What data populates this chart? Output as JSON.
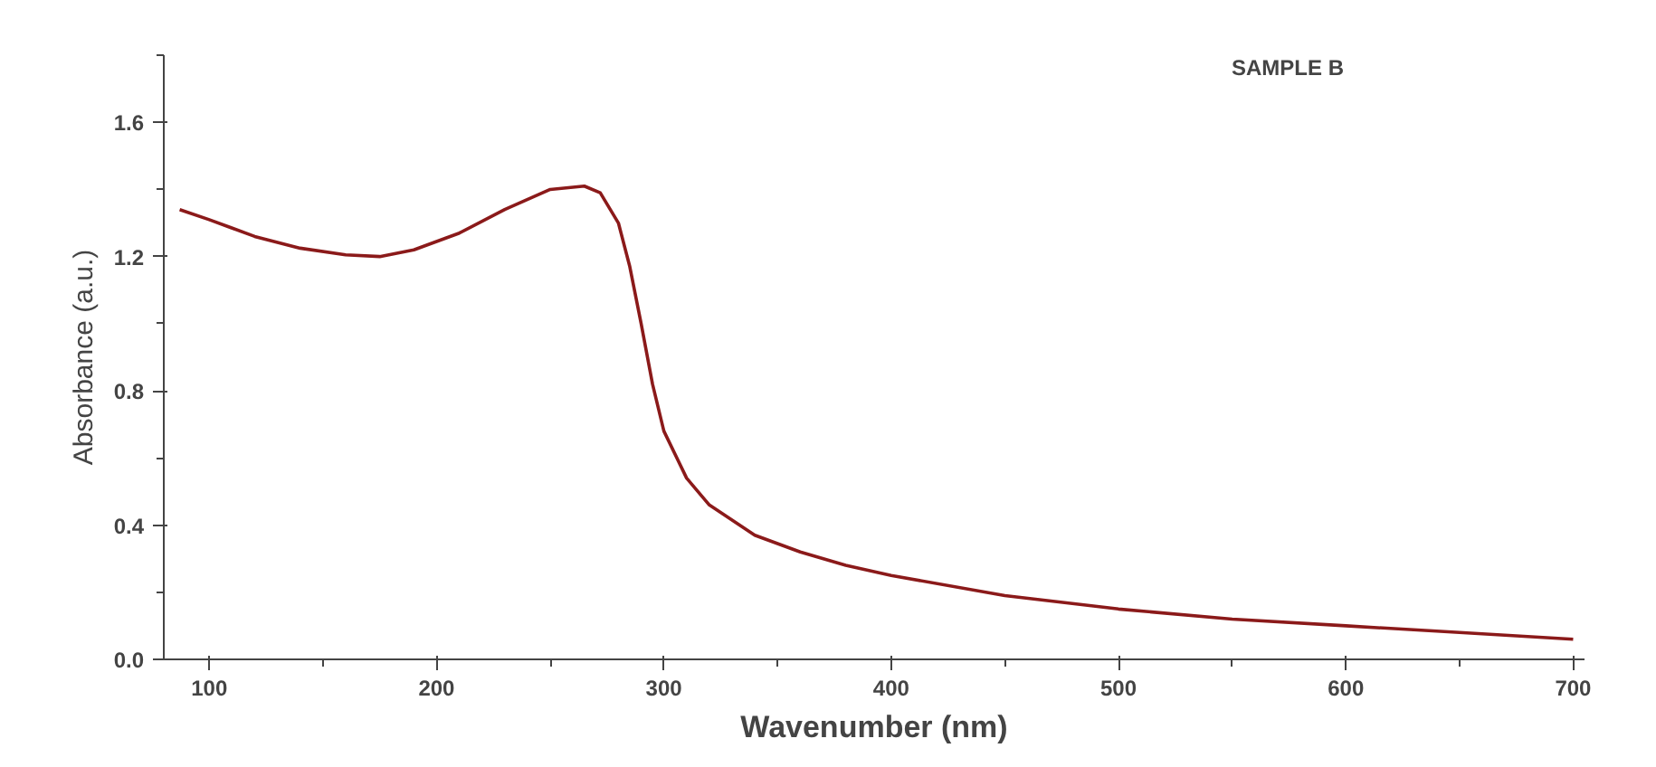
{
  "chart_data": {
    "type": "line",
    "xlabel": "Wavenumber (nm)",
    "ylabel": "Absorbance (a.u.)",
    "annotations": [
      "SAMPLE B"
    ],
    "series": [
      {
        "color": "#8b1a1a",
        "x": [
          87,
          100,
          120,
          140,
          160,
          175,
          190,
          210,
          230,
          250,
          265,
          272,
          280,
          285,
          290,
          295,
          300,
          310,
          320,
          340,
          360,
          380,
          400,
          450,
          500,
          550,
          600,
          650,
          700
        ],
        "values": [
          1.34,
          1.31,
          1.26,
          1.225,
          1.205,
          1.2,
          1.22,
          1.27,
          1.34,
          1.4,
          1.41,
          1.39,
          1.3,
          1.17,
          1.0,
          0.82,
          0.68,
          0.54,
          0.46,
          0.37,
          0.32,
          0.28,
          0.25,
          0.19,
          0.15,
          0.12,
          0.1,
          0.08,
          0.06
        ]
      }
    ],
    "xlim": [
      80,
      705
    ],
    "ylim": [
      0,
      1.8
    ],
    "xticks": [
      100,
      200,
      300,
      400,
      500,
      600,
      700
    ],
    "yticks": [
      {
        "value": 0,
        "label": "0.0"
      },
      {
        "value": 0.4,
        "label": "0.4"
      },
      {
        "value": 0.8,
        "label": "0.8"
      },
      {
        "value": 1.2,
        "label": "1.2"
      },
      {
        "value": 1.6,
        "label": "1.6"
      }
    ],
    "grid": false,
    "marker": "none",
    "line_style": "solid"
  }
}
